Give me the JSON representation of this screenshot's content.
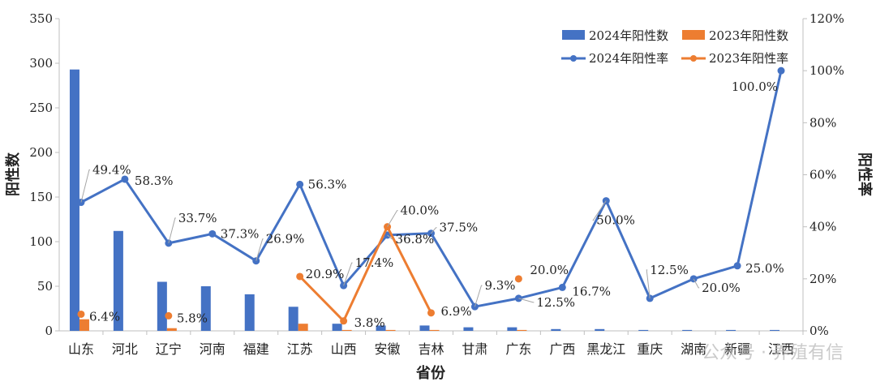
{
  "colors": {
    "bar2024": "#4472C4",
    "bar2023": "#ED7D31",
    "line2024": "#4472C4",
    "line2023": "#ED7D31"
  },
  "watermark": "公众号 · 养殖有信",
  "chart_data": {
    "type": "bar",
    "xlabel": "省份",
    "ylabel": "阳性数",
    "y2label": "阳性率",
    "ylim": [
      0,
      350
    ],
    "yticks": [
      "0",
      "50",
      "100",
      "150",
      "200",
      "250",
      "300",
      "350"
    ],
    "y2lim": [
      0,
      120
    ],
    "y2ticks": [
      "0%",
      "20%",
      "40%",
      "60%",
      "80%",
      "100%",
      "120%"
    ],
    "grid": false,
    "legend_position": "top-right",
    "categories": [
      "山东",
      "河北",
      "辽宁",
      "河南",
      "福建",
      "江苏",
      "山西",
      "安徽",
      "吉林",
      "甘肃",
      "广东",
      "广西",
      "黑龙江",
      "重庆",
      "湖南",
      "新疆",
      "江西"
    ],
    "series": [
      {
        "name": "2024年阳性数",
        "kind": "bar",
        "axis": "left",
        "values": [
          293,
          112,
          55,
          50,
          41,
          27,
          8,
          6,
          6,
          4,
          4,
          2,
          2,
          1,
          1,
          1,
          1
        ]
      },
      {
        "name": "2023年阳性数",
        "kind": "bar",
        "axis": "left",
        "values": [
          13,
          null,
          3,
          null,
          null,
          8,
          1,
          1,
          1,
          null,
          1,
          null,
          null,
          null,
          null,
          null,
          null
        ]
      },
      {
        "name": "2024年阳性率",
        "kind": "line",
        "axis": "right",
        "values": [
          49.4,
          58.3,
          33.7,
          37.3,
          26.9,
          56.3,
          17.4,
          36.8,
          37.5,
          9.3,
          12.5,
          16.7,
          50.0,
          12.5,
          20.0,
          25.0,
          100.0
        ],
        "labels": [
          "49.4%",
          "58.3%",
          "33.7%",
          "37.3%",
          "26.9%",
          "56.3%",
          "17.4%",
          "36.8%",
          "37.5%",
          "9.3%",
          "12.5%",
          "16.7%",
          "50.0%",
          "12.5%",
          "20.0%",
          "25.0%",
          "100.0%"
        ]
      },
      {
        "name": "2023年阳性率",
        "kind": "line",
        "axis": "right",
        "values": [
          6.4,
          null,
          5.8,
          null,
          null,
          20.9,
          3.8,
          40.0,
          6.9,
          null,
          20.0,
          null,
          null,
          null,
          null,
          null,
          null
        ],
        "labels": [
          "6.4%",
          null,
          "5.8%",
          null,
          null,
          "20.9%",
          "3.8%",
          "40.0%",
          "6.9%",
          null,
          "20.0%",
          null,
          null,
          null,
          null,
          null,
          null
        ]
      }
    ]
  }
}
